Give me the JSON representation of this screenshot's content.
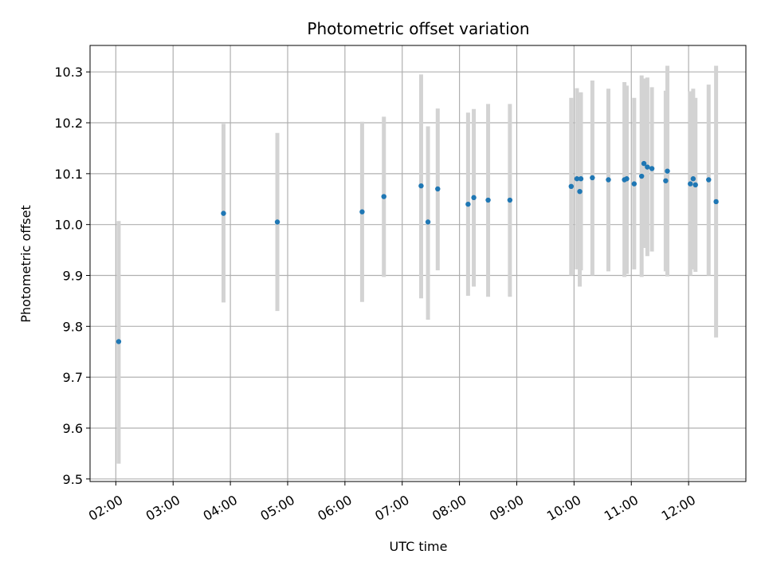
{
  "chart_data": {
    "type": "scatter",
    "title": "Photometric offset variation",
    "xlabel": "UTC time",
    "ylabel": "Photometric offset",
    "x_unit": "UTC hours",
    "xlim": [
      1.55,
      13.0
    ],
    "ylim": [
      9.495,
      10.352
    ],
    "grid": true,
    "xticks": [
      {
        "value": 2,
        "label": "02:00"
      },
      {
        "value": 3,
        "label": "03:00"
      },
      {
        "value": 4,
        "label": "04:00"
      },
      {
        "value": 5,
        "label": "05:00"
      },
      {
        "value": 6,
        "label": "06:00"
      },
      {
        "value": 7,
        "label": "07:00"
      },
      {
        "value": 8,
        "label": "08:00"
      },
      {
        "value": 9,
        "label": "09:00"
      },
      {
        "value": 10,
        "label": "10:00"
      },
      {
        "value": 11,
        "label": "11:00"
      },
      {
        "value": 12,
        "label": "12:00"
      }
    ],
    "yticks": [
      {
        "value": 9.5,
        "label": "9.5"
      },
      {
        "value": 9.6,
        "label": "9.6"
      },
      {
        "value": 9.7,
        "label": "9.7"
      },
      {
        "value": 9.8,
        "label": "9.8"
      },
      {
        "value": 9.9,
        "label": "9.9"
      },
      {
        "value": 10.0,
        "label": "10.0"
      },
      {
        "value": 10.1,
        "label": "10.1"
      },
      {
        "value": 10.2,
        "label": "10.2"
      },
      {
        "value": 10.3,
        "label": "10.3"
      }
    ],
    "colors": {
      "point": "#1f77b4",
      "errorbar": "#d3d3d3",
      "grid": "#b0b0b0"
    },
    "points": [
      {
        "x": 2.05,
        "y": 9.77,
        "low": 9.53,
        "high": 10.007
      },
      {
        "x": 3.88,
        "y": 10.022,
        "low": 9.847,
        "high": 10.198
      },
      {
        "x": 4.82,
        "y": 10.005,
        "low": 9.83,
        "high": 10.18
      },
      {
        "x": 6.3,
        "y": 10.025,
        "low": 9.848,
        "high": 10.202
      },
      {
        "x": 6.68,
        "y": 10.055,
        "low": 9.897,
        "high": 10.212
      },
      {
        "x": 7.33,
        "y": 10.076,
        "low": 9.855,
        "high": 10.295
      },
      {
        "x": 7.45,
        "y": 10.005,
        "low": 9.813,
        "high": 10.193
      },
      {
        "x": 7.62,
        "y": 10.07,
        "low": 9.91,
        "high": 10.228
      },
      {
        "x": 8.15,
        "y": 10.04,
        "low": 9.86,
        "high": 10.22
      },
      {
        "x": 8.25,
        "y": 10.053,
        "low": 9.878,
        "high": 10.227
      },
      {
        "x": 8.5,
        "y": 10.048,
        "low": 9.858,
        "high": 10.237
      },
      {
        "x": 8.88,
        "y": 10.048,
        "low": 9.858,
        "high": 10.237
      },
      {
        "x": 9.95,
        "y": 10.075,
        "low": 9.9,
        "high": 10.249
      },
      {
        "x": 10.05,
        "y": 10.09,
        "low": 9.912,
        "high": 10.268
      },
      {
        "x": 10.1,
        "y": 10.065,
        "low": 9.878,
        "high": 10.258
      },
      {
        "x": 10.12,
        "y": 10.09,
        "low": 9.91,
        "high": 10.26
      },
      {
        "x": 10.32,
        "y": 10.092,
        "low": 9.9,
        "high": 10.283
      },
      {
        "x": 10.6,
        "y": 10.088,
        "low": 9.908,
        "high": 10.267
      },
      {
        "x": 10.88,
        "y": 10.088,
        "low": 9.897,
        "high": 10.28
      },
      {
        "x": 10.92,
        "y": 10.09,
        "low": 9.903,
        "high": 10.273
      },
      {
        "x": 11.05,
        "y": 10.08,
        "low": 9.912,
        "high": 10.249
      },
      {
        "x": 11.18,
        "y": 10.095,
        "low": 9.897,
        "high": 10.293
      },
      {
        "x": 11.22,
        "y": 10.12,
        "low": 9.954,
        "high": 10.287
      },
      {
        "x": 11.28,
        "y": 10.113,
        "low": 9.938,
        "high": 10.289
      },
      {
        "x": 11.36,
        "y": 10.11,
        "low": 9.947,
        "high": 10.27
      },
      {
        "x": 11.6,
        "y": 10.086,
        "low": 9.908,
        "high": 10.263
      },
      {
        "x": 11.63,
        "y": 10.105,
        "low": 9.898,
        "high": 10.312
      },
      {
        "x": 12.03,
        "y": 10.08,
        "low": 9.9,
        "high": 10.262
      },
      {
        "x": 12.08,
        "y": 10.09,
        "low": 9.912,
        "high": 10.267
      },
      {
        "x": 12.12,
        "y": 10.078,
        "low": 9.907,
        "high": 10.249
      },
      {
        "x": 12.35,
        "y": 10.088,
        "low": 9.9,
        "high": 10.275
      },
      {
        "x": 12.48,
        "y": 10.045,
        "low": 9.778,
        "high": 10.312
      }
    ]
  }
}
